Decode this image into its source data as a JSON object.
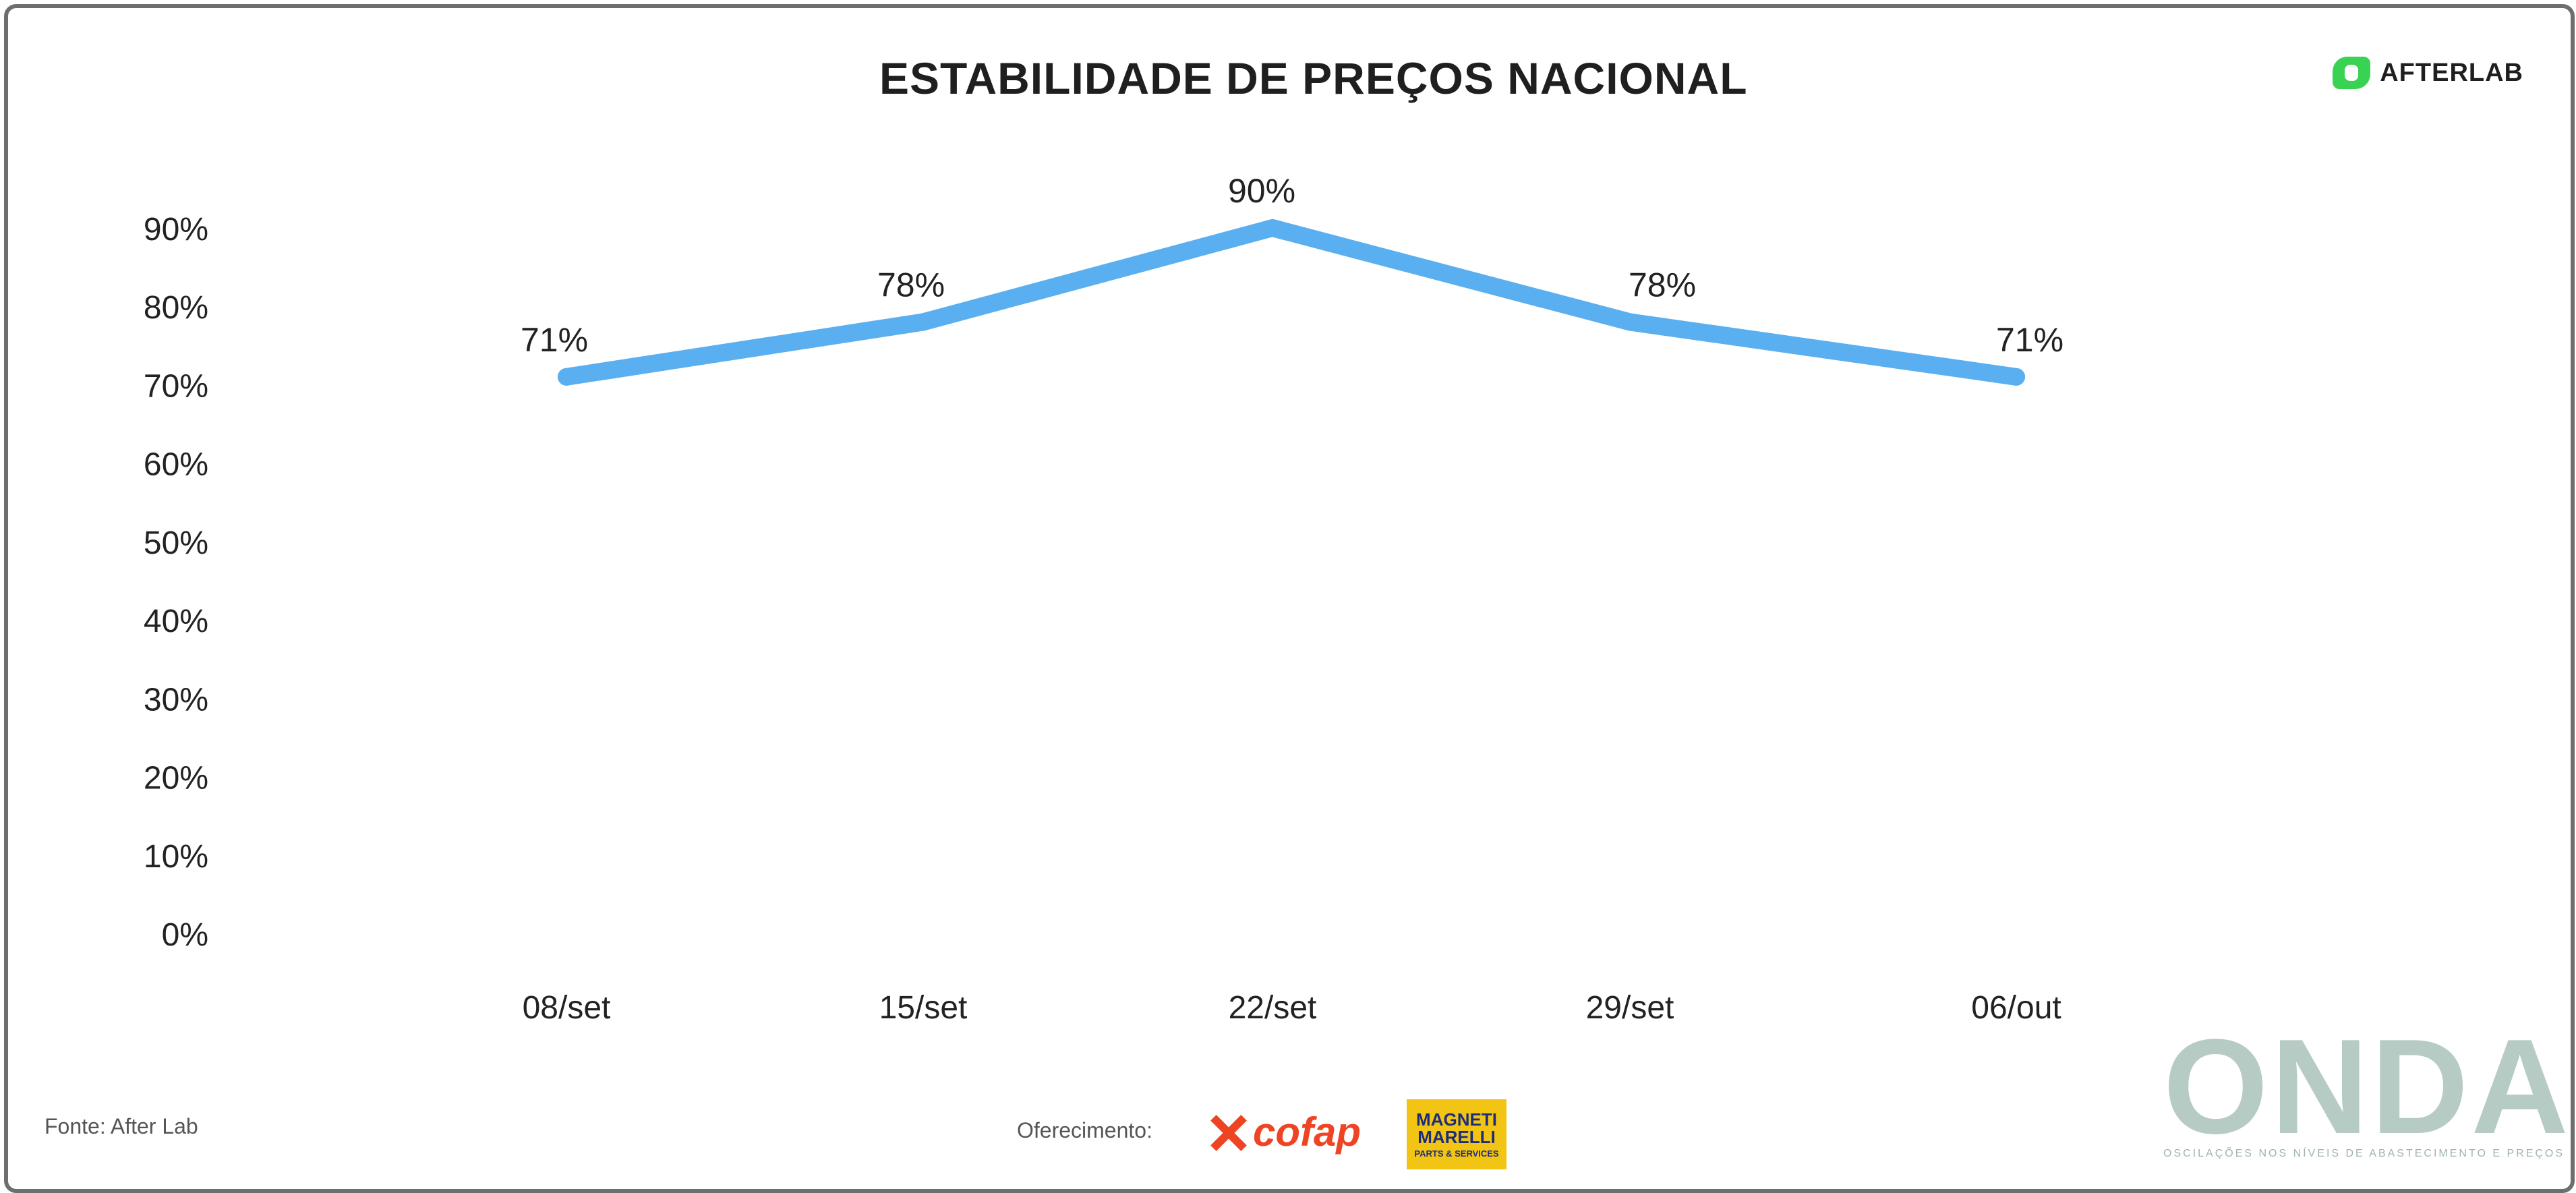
{
  "title": "ESTABILIDADE DE PREÇOS NACIONAL",
  "brand": {
    "name": "AFTERLAB",
    "accent": "#39d353"
  },
  "chart_data": {
    "type": "line",
    "title": "ESTABILIDADE DE PREÇOS NACIONAL",
    "xlabel": "",
    "ylabel": "",
    "categories": [
      "08/set",
      "15/set",
      "22/set",
      "29/set",
      "06/out"
    ],
    "series": [
      {
        "values": [
          71,
          78,
          90,
          78,
          71
        ],
        "color": "#5aaff0"
      }
    ],
    "data_labels": [
      "71%",
      "78%",
      "90%",
      "78%",
      "71%"
    ],
    "ylim": [
      0,
      90
    ],
    "yticks": [
      0,
      10,
      20,
      30,
      40,
      50,
      60,
      70,
      80,
      90
    ],
    "ytick_labels": [
      "0%",
      "10%",
      "20%",
      "30%",
      "40%",
      "50%",
      "60%",
      "70%",
      "80%",
      "90%"
    ],
    "grid": false,
    "legend": "none"
  },
  "footer": {
    "source": "Fonte: After Lab",
    "sponsor_label": "Oferecimento:",
    "sponsors": [
      {
        "name": "cofap",
        "color": "#ee4423"
      },
      {
        "name": "MAGNETI MARELLI",
        "sub": "PARTS & SERVICES",
        "color": "#f2c515"
      }
    ]
  },
  "onda": {
    "name": "ONDA",
    "tagline": "OSCILAÇÕES NOS NÍVEIS DE ABASTECIMENTO E PREÇOS"
  }
}
